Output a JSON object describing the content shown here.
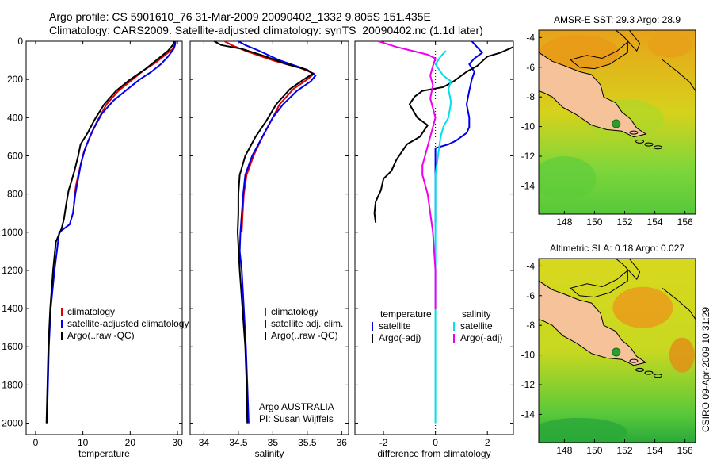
{
  "header": {
    "line1": "Argo profile: CS 5901610_76 31-Mar-2009 20090402_1332 9.805S 151.435E",
    "line2": "Climatology: CARS2009. Satellite-adjusted climatology: synTS_20090402.nc (1.1d later)"
  },
  "colors": {
    "climatology": "#e00000",
    "satellite": "#0000ee",
    "argo": "#000000",
    "satellite_diff": "#00e0e8",
    "argo_diff": "#ee00ee",
    "land": "#f5c29a",
    "marker": "#2aa02a"
  },
  "chart_data": [
    {
      "type": "line",
      "panel": "temperature",
      "xlabel": "temperature",
      "ylabel": "",
      "xlim": [
        -2,
        31
      ],
      "ylim": [
        2060,
        0
      ],
      "y_inverted": true,
      "xticks": [
        0,
        10,
        20,
        30
      ],
      "yticks": [
        0,
        200,
        400,
        600,
        800,
        1000,
        1200,
        1400,
        1600,
        1800,
        2000
      ],
      "legend": [
        "climatology",
        "satellite-adjusted climatology",
        "Argo(..raw -QC)"
      ],
      "series": [
        {
          "name": "climatology",
          "color": "#e00000",
          "points": [
            [
              29.6,
              0
            ],
            [
              29.4,
              20
            ],
            [
              29.0,
              40
            ],
            [
              27.5,
              70
            ],
            [
              25.5,
              110
            ],
            [
              23.0,
              150
            ],
            [
              20.5,
              200
            ],
            [
              17.5,
              260
            ],
            [
              15.0,
              330
            ],
            [
              13.0,
              420
            ],
            [
              11.5,
              500
            ],
            [
              10.2,
              580
            ],
            [
              9.2,
              680
            ],
            [
              8.5,
              760
            ],
            [
              8.1,
              850
            ]
          ]
        },
        {
          "name": "satellite-adjusted climatology",
          "color": "#0000ee",
          "points": [
            [
              29.6,
              0
            ],
            [
              29.5,
              20
            ],
            [
              29.2,
              40
            ],
            [
              28.0,
              80
            ],
            [
              26.5,
              120
            ],
            [
              24.5,
              160
            ],
            [
              22.0,
              200
            ],
            [
              19.5,
              250
            ],
            [
              16.5,
              310
            ],
            [
              14.0,
              380
            ],
            [
              12.0,
              470
            ],
            [
              10.5,
              560
            ],
            [
              9.6,
              640
            ],
            [
              9.0,
              720
            ],
            [
              8.4,
              800
            ],
            [
              7.9,
              900
            ],
            [
              7.2,
              960
            ],
            [
              5.0,
              1000
            ],
            [
              4.0,
              1200
            ],
            [
              3.2,
              1400
            ],
            [
              2.8,
              1600
            ],
            [
              2.6,
              1800
            ],
            [
              2.4,
              2000
            ]
          ]
        },
        {
          "name": "Argo(..raw -QC)",
          "color": "#000000",
          "points": [
            [
              29.4,
              0
            ],
            [
              29.0,
              20
            ],
            [
              28.0,
              50
            ],
            [
              26.5,
              80
            ],
            [
              25.0,
              110
            ],
            [
              23.0,
              150
            ],
            [
              20.0,
              200
            ],
            [
              17.0,
              260
            ],
            [
              14.5,
              330
            ],
            [
              12.5,
              410
            ],
            [
              11.0,
              480
            ],
            [
              9.5,
              540
            ],
            [
              9.0,
              600
            ],
            [
              8.2,
              680
            ],
            [
              7.5,
              740
            ],
            [
              7.0,
              780
            ],
            [
              6.5,
              850
            ],
            [
              6.0,
              930
            ],
            [
              5.5,
              980
            ],
            [
              4.3,
              1050
            ],
            [
              3.7,
              1200
            ],
            [
              3.1,
              1400
            ],
            [
              2.7,
              1600
            ],
            [
              2.5,
              1800
            ],
            [
              2.3,
              2000
            ]
          ]
        }
      ]
    },
    {
      "type": "line",
      "panel": "salinity",
      "xlabel": "salinity",
      "ylabel": "",
      "xlim": [
        33.8,
        36.1
      ],
      "ylim": [
        2060,
        0
      ],
      "y_inverted": true,
      "xticks": [
        34,
        34.5,
        35,
        35.5,
        36
      ],
      "xtick_labels": [
        "34",
        "34.5",
        "35",
        "35.5",
        "36"
      ],
      "legend": [
        "climatology",
        "satellite adj. clim.",
        "Argo(..raw -QC)"
      ],
      "series": [
        {
          "name": "climatology",
          "color": "#e00000",
          "points": [
            [
              34.3,
              0
            ],
            [
              34.4,
              20
            ],
            [
              34.6,
              50
            ],
            [
              35.0,
              100
            ],
            [
              35.4,
              140
            ],
            [
              35.6,
              170
            ],
            [
              35.5,
              200
            ],
            [
              35.3,
              250
            ],
            [
              35.1,
              330
            ],
            [
              35.0,
              400
            ],
            [
              34.85,
              500
            ],
            [
              34.72,
              600
            ],
            [
              34.62,
              700
            ],
            [
              34.58,
              800
            ],
            [
              34.56,
              920
            ],
            [
              34.55,
              1000
            ]
          ]
        },
        {
          "name": "satellite adj. clim.",
          "color": "#0000ee",
          "points": [
            [
              34.5,
              0
            ],
            [
              34.6,
              20
            ],
            [
              34.8,
              50
            ],
            [
              35.1,
              100
            ],
            [
              35.5,
              150
            ],
            [
              35.62,
              180
            ],
            [
              35.55,
              210
            ],
            [
              35.35,
              260
            ],
            [
              35.15,
              330
            ],
            [
              35.0,
              400
            ],
            [
              34.85,
              500
            ],
            [
              34.7,
              600
            ],
            [
              34.6,
              700
            ],
            [
              34.57,
              800
            ],
            [
              34.55,
              900
            ],
            [
              34.53,
              1000
            ],
            [
              34.52,
              1100
            ],
            [
              34.55,
              1200
            ],
            [
              34.58,
              1400
            ],
            [
              34.61,
              1600
            ],
            [
              34.63,
              1800
            ],
            [
              34.65,
              2000
            ]
          ]
        },
        {
          "name": "Argo(..raw -QC)",
          "color": "#000000",
          "points": [
            [
              34.15,
              0
            ],
            [
              34.25,
              20
            ],
            [
              34.55,
              40
            ],
            [
              34.9,
              80
            ],
            [
              35.2,
              120
            ],
            [
              35.5,
              150
            ],
            [
              35.58,
              170
            ],
            [
              35.45,
              200
            ],
            [
              35.25,
              250
            ],
            [
              35.05,
              330
            ],
            [
              34.9,
              420
            ],
            [
              34.75,
              500
            ],
            [
              34.6,
              600
            ],
            [
              34.52,
              700
            ],
            [
              34.5,
              800
            ],
            [
              34.5,
              900
            ],
            [
              34.49,
              1000
            ],
            [
              34.52,
              1200
            ],
            [
              34.56,
              1400
            ],
            [
              34.6,
              1600
            ],
            [
              34.62,
              1800
            ],
            [
              34.63,
              2000
            ]
          ]
        }
      ],
      "annotations": [
        "Argo AUSTRALIA",
        "PI: Susan Wijffels"
      ]
    },
    {
      "type": "line",
      "panel": "difference",
      "xlabel": "difference from climatology",
      "ylabel": "",
      "xlim": [
        -3.1,
        3.0
      ],
      "ylim": [
        2060,
        0
      ],
      "y_inverted": true,
      "xticks": [
        -2,
        0,
        2
      ],
      "legend_groups": [
        {
          "title": "temperature",
          "entries": [
            "satellite",
            "Argo(-adj)"
          ]
        },
        {
          "title": "salinity",
          "entries": [
            "satellite",
            "Argo(-adj)"
          ]
        }
      ],
      "series": [
        {
          "name": "temperature satellite",
          "color": "#0000ee",
          "points": [
            [
              1.4,
              0
            ],
            [
              1.6,
              30
            ],
            [
              1.8,
              60
            ],
            [
              1.5,
              90
            ],
            [
              1.3,
              120
            ],
            [
              1.5,
              160
            ],
            [
              1.4,
              200
            ],
            [
              1.3,
              260
            ],
            [
              1.2,
              330
            ],
            [
              1.3,
              400
            ],
            [
              1.3,
              450
            ],
            [
              1.2,
              480
            ],
            [
              0.8,
              520
            ],
            [
              0.5,
              540
            ],
            [
              0.0,
              560
            ],
            [
              0.0,
              900
            ],
            [
              0.0,
              950
            ]
          ]
        },
        {
          "name": "temperature Argo(-adj)",
          "color": "#000000",
          "points": [
            [
              3.0,
              30
            ],
            [
              2.5,
              60
            ],
            [
              2.0,
              80
            ],
            [
              1.6,
              130
            ],
            [
              1.2,
              160
            ],
            [
              0.7,
              210
            ],
            [
              0.3,
              240
            ],
            [
              -0.5,
              260
            ],
            [
              -0.8,
              290
            ],
            [
              -1.0,
              330
            ],
            [
              -0.7,
              400
            ],
            [
              -0.3,
              440
            ],
            [
              -0.6,
              500
            ],
            [
              -1.1,
              540
            ],
            [
              -1.3,
              580
            ],
            [
              -1.5,
              620
            ],
            [
              -1.7,
              680
            ],
            [
              -2.0,
              720
            ],
            [
              -2.1,
              780
            ],
            [
              -2.3,
              840
            ],
            [
              -2.35,
              900
            ],
            [
              -2.3,
              950
            ]
          ]
        },
        {
          "name": "salinity satellite",
          "color": "#00e0e8",
          "points": [
            [
              0.4,
              50
            ],
            [
              0.2,
              80
            ],
            [
              0.0,
              120
            ],
            [
              0.3,
              180
            ],
            [
              0.6,
              210
            ],
            [
              0.5,
              250
            ],
            [
              0.6,
              320
            ],
            [
              0.5,
              400
            ],
            [
              0.3,
              450
            ],
            [
              0.2,
              500
            ],
            [
              0.1,
              600
            ],
            [
              0.0,
              700
            ],
            [
              0.0,
              1000
            ],
            [
              0.0,
              1500
            ],
            [
              0.0,
              2000
            ]
          ]
        },
        {
          "name": "salinity Argo(-adj)",
          "color": "#ee00ee",
          "points": [
            [
              -2.2,
              0
            ],
            [
              -1.5,
              30
            ],
            [
              -0.9,
              50
            ],
            [
              -0.3,
              70
            ],
            [
              0.0,
              90
            ],
            [
              -0.1,
              130
            ],
            [
              -0.2,
              180
            ],
            [
              -0.1,
              230
            ],
            [
              -0.2,
              300
            ],
            [
              -0.1,
              350
            ],
            [
              0.0,
              400
            ],
            [
              -0.1,
              450
            ],
            [
              -0.2,
              500
            ],
            [
              -0.3,
              550
            ],
            [
              -0.4,
              600
            ],
            [
              -0.5,
              650
            ],
            [
              -0.5,
              700
            ],
            [
              -0.3,
              800
            ],
            [
              -0.2,
              900
            ],
            [
              -0.1,
              1000
            ],
            [
              0.0,
              1200
            ],
            [
              0.0,
              1400
            ]
          ]
        }
      ]
    },
    {
      "type": "heatmap",
      "panel": "sst_map",
      "title": "AMSR-E SST: 29.3 Argo: 28.9",
      "xlim": [
        146.3,
        156.7
      ],
      "ylim": [
        -15.9,
        -3.5
      ],
      "xticks": [
        148,
        150,
        152,
        154,
        156
      ],
      "yticks": [
        -4,
        -6,
        -8,
        -10,
        -12,
        -14
      ],
      "argo_position": [
        151.435,
        -9.805
      ]
    },
    {
      "type": "heatmap",
      "panel": "sla_map",
      "title": "Altimetric SLA: 0.18 Argo: 0.027",
      "xlim": [
        146.3,
        156.7
      ],
      "ylim": [
        -15.9,
        -3.5
      ],
      "xticks": [
        148,
        150,
        152,
        154,
        156
      ],
      "yticks": [
        -4,
        -6,
        -8,
        -10,
        -12,
        -14
      ],
      "argo_position": [
        151.435,
        -9.805
      ]
    }
  ],
  "footer": {
    "stamp": "CSIRO 09-Apr-2009 10:31:29"
  }
}
